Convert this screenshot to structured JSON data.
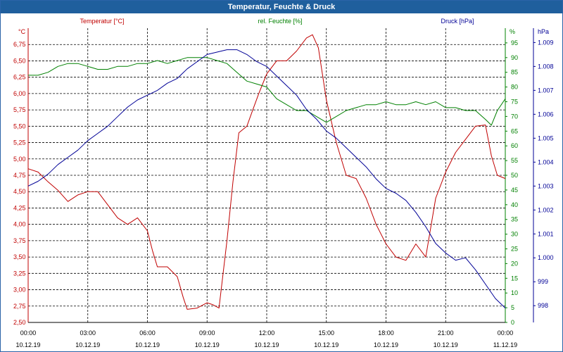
{
  "window": {
    "title": "Temperatur, Feuchte & Druck"
  },
  "colors": {
    "temperature": "#c00000",
    "humidity": "#008000",
    "pressure": "#000096",
    "grid": "#000000",
    "titlebar": "#1f5f9d"
  },
  "chart_data": {
    "type": "line",
    "title": "Temperatur, Feuchte & Druck",
    "x_ticks": [
      {
        "time": "00:00",
        "date": "10.12.19"
      },
      {
        "time": "03:00",
        "date": "10.12.19"
      },
      {
        "time": "06:00",
        "date": "10.12.19"
      },
      {
        "time": "09:00",
        "date": "10.12.19"
      },
      {
        "time": "12:00",
        "date": "10.12.19"
      },
      {
        "time": "15:00",
        "date": "10.12.19"
      },
      {
        "time": "18:00",
        "date": "10.12.19"
      },
      {
        "time": "21:00",
        "date": "10.12.19"
      },
      {
        "time": "00:00",
        "date": "11.12.19"
      }
    ],
    "xlim_hours": [
      0,
      24
    ],
    "axes": {
      "temperature": {
        "label": "Temperatur [°C]",
        "unit": "°C",
        "ylim": [
          2.5,
          7.0
        ],
        "ticks": [
          "2,50",
          "2,75",
          "3,00",
          "3,25",
          "3,50",
          "3,75",
          "4,00",
          "4,25",
          "4,50",
          "4,75",
          "5,00",
          "5,25",
          "5,50",
          "5,75",
          "6,00",
          "6,25",
          "6,50",
          "6,75"
        ]
      },
      "humidity": {
        "label": "rel. Feuchte [%]",
        "unit": "%",
        "ylim": [
          0,
          100
        ],
        "ticks": [
          "0",
          "5",
          "10",
          "15",
          "20",
          "25",
          "30",
          "35",
          "40",
          "45",
          "50",
          "55",
          "60",
          "65",
          "70",
          "75",
          "80",
          "85",
          "90",
          "95"
        ]
      },
      "pressure": {
        "label": "Druck [hPa]",
        "unit": "hPa",
        "ylim": [
          997.3,
          1009.6
        ],
        "ticks": [
          "998",
          "999",
          "1.000",
          "1.001",
          "1.002",
          "1.003",
          "1.004",
          "1.005",
          "1.006",
          "1.007",
          "1.008",
          "1.009"
        ]
      }
    },
    "series": [
      {
        "name": "Temperatur [°C]",
        "axis": "temperature",
        "x": [
          0,
          0.5,
          1,
          1.5,
          2,
          2.5,
          3,
          3.5,
          4,
          4.5,
          5,
          5.5,
          6,
          6.25,
          6.5,
          7,
          7.5,
          7.8,
          8,
          8.5,
          9,
          9.3,
          9.6,
          10,
          10.3,
          10.6,
          11,
          11.3,
          11.6,
          12,
          12.5,
          13,
          13.5,
          14,
          14.3,
          14.6,
          15,
          15.5,
          16,
          16.5,
          17,
          17.5,
          18,
          18.5,
          19,
          19.5,
          20,
          20.5,
          21,
          21.5,
          22,
          22.5,
          23,
          23.3,
          23.6,
          24
        ],
        "values": [
          4.85,
          4.8,
          4.65,
          4.52,
          4.35,
          4.45,
          4.5,
          4.5,
          4.3,
          4.1,
          4.0,
          4.1,
          3.9,
          3.6,
          3.35,
          3.35,
          3.2,
          2.88,
          2.7,
          2.72,
          2.8,
          2.77,
          2.72,
          3.75,
          4.65,
          5.4,
          5.5,
          5.75,
          6.0,
          6.3,
          6.5,
          6.5,
          6.65,
          6.85,
          6.9,
          6.7,
          5.9,
          5.25,
          4.75,
          4.7,
          4.4,
          4.0,
          3.7,
          3.5,
          3.45,
          3.7,
          3.5,
          4.4,
          4.8,
          5.1,
          5.3,
          5.5,
          5.52,
          5.05,
          4.75,
          4.7
        ]
      },
      {
        "name": "rel. Feuchte [%]",
        "axis": "humidity",
        "x": [
          0,
          0.5,
          1,
          1.5,
          2,
          2.5,
          3,
          3.5,
          4,
          4.5,
          5,
          5.5,
          6,
          6.5,
          7,
          7.5,
          8,
          8.5,
          9,
          9.5,
          10,
          10.5,
          11,
          11.5,
          12,
          12.5,
          13,
          13.5,
          14,
          14.5,
          15,
          15.5,
          16,
          16.5,
          17,
          17.5,
          18,
          18.5,
          19,
          19.5,
          20,
          20.5,
          21,
          21.5,
          22,
          22.5,
          23,
          23.3,
          23.6,
          24
        ],
        "values": [
          84,
          84,
          85,
          87,
          88,
          88,
          87,
          86,
          86,
          87,
          87,
          88,
          88,
          89,
          88,
          89,
          90,
          90,
          90,
          89,
          88,
          85,
          82,
          81,
          80,
          76,
          74,
          72,
          72,
          70,
          68,
          70,
          72,
          73,
          74,
          74,
          75,
          74,
          74,
          75,
          74,
          75,
          73,
          73,
          72,
          72,
          69,
          67,
          72,
          76
        ]
      },
      {
        "name": "Druck [hPa]",
        "axis": "pressure",
        "x": [
          0,
          0.5,
          1,
          1.5,
          2,
          2.5,
          3,
          3.5,
          4,
          4.5,
          5,
          5.5,
          6,
          6.5,
          7,
          7.5,
          8,
          8.5,
          9,
          9.5,
          10,
          10.5,
          11,
          11.5,
          12,
          12.5,
          13,
          13.5,
          14,
          14.5,
          15,
          15.5,
          16,
          16.5,
          17,
          17.5,
          18,
          18.5,
          19,
          19.5,
          20,
          20.5,
          21,
          21.5,
          22,
          22.5,
          23,
          23.5,
          24
        ],
        "values": [
          1003.0,
          1003.2,
          1003.5,
          1003.9,
          1004.2,
          1004.5,
          1004.9,
          1005.2,
          1005.5,
          1005.9,
          1006.3,
          1006.6,
          1006.8,
          1007.0,
          1007.3,
          1007.5,
          1007.9,
          1008.2,
          1008.5,
          1008.6,
          1008.7,
          1008.7,
          1008.5,
          1008.2,
          1008.0,
          1007.6,
          1007.2,
          1006.8,
          1006.2,
          1005.8,
          1005.3,
          1005.0,
          1004.6,
          1004.2,
          1003.8,
          1003.3,
          1002.9,
          1002.7,
          1002.4,
          1001.9,
          1001.3,
          1000.6,
          1000.2,
          999.9,
          1000.0,
          999.5,
          998.9,
          998.3,
          997.9
        ]
      }
    ]
  }
}
